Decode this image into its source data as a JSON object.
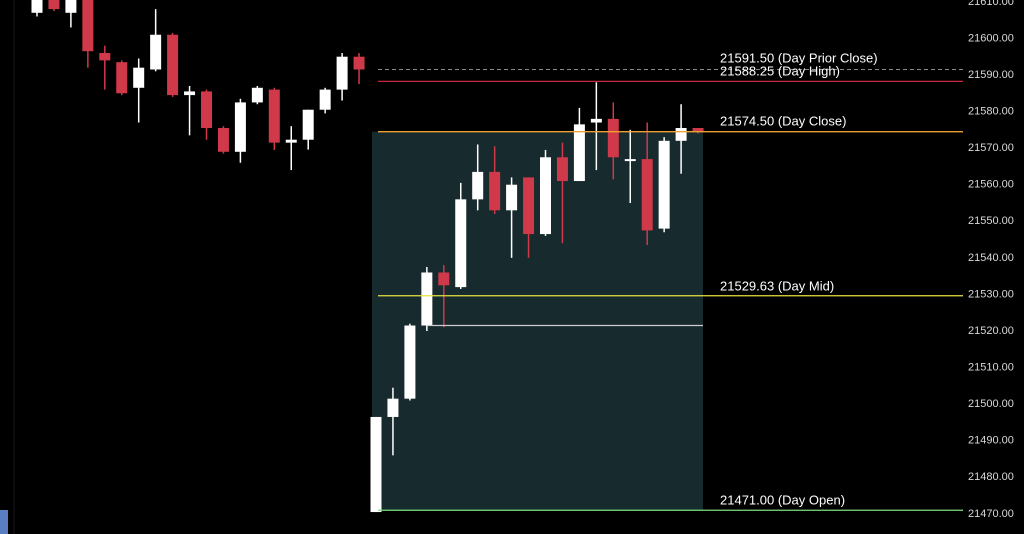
{
  "chart_data": {
    "type": "candlestick",
    "categories": [
      null,
      null,
      null,
      null,
      null,
      null,
      null,
      null,
      null,
      null,
      null,
      null,
      null,
      null,
      null,
      null,
      null,
      null,
      null,
      null,
      null,
      null,
      null,
      null,
      null,
      null,
      null,
      null,
      null,
      null,
      null,
      null,
      null,
      null,
      null,
      null,
      null,
      null,
      null,
      null
    ],
    "open": [
      21607,
      21612,
      21607,
      21612,
      21596,
      21593.5,
      21586.5,
      21591.5,
      21601,
      21584.5,
      21585.5,
      21575.5,
      21569,
      21582.5,
      21586,
      21571.5,
      21572.3,
      21580.5,
      21586,
      21595,
      21470.5,
      21496.5,
      21501.5,
      21521.5,
      21536,
      21532,
      21556,
      21563.5,
      21553,
      21562,
      21546.5,
      21567.5,
      21561,
      21577,
      21578,
      21566.5,
      21567,
      21548,
      21572,
      21575.5
    ],
    "high": [
      21614,
      21613,
      21613,
      21613,
      21598,
      21594,
      21594.5,
      21608,
      21601.5,
      21587,
      21586,
      21576,
      21583.5,
      21587,
      21586.5,
      21576,
      21580.5,
      21586.5,
      21596,
      21596,
      21496.5,
      21504.5,
      21522,
      21537.5,
      21538,
      21560.5,
      21571,
      21570.5,
      21562,
      21562,
      21569.5,
      21571.5,
      21581,
      21588,
      21582.5,
      21575,
      21577,
      21573,
      21582,
      21575.5
    ],
    "low": [
      21606,
      21607.5,
      21603,
      21592,
      21586,
      21584.5,
      21577,
      21591,
      21584,
      21573.5,
      21572.3,
      21568.5,
      21566,
      21582,
      21569.5,
      21564,
      21569.6,
      21579.5,
      21583,
      21587.5,
      21470.5,
      21486,
      21501,
      21520,
      21521,
      21531.5,
      21553,
      21552,
      21540,
      21540,
      21546,
      21544,
      21561,
      21564,
      21561.5,
      21555,
      21543.5,
      21547,
      21563,
      21574
    ],
    "close": [
      21612,
      21608,
      21612,
      21596.5,
      21594,
      21585,
      21592,
      21601,
      21584.5,
      21585.5,
      21575.5,
      21569,
      21582.5,
      21586.5,
      21571.5,
      21572.3,
      21580.5,
      21586,
      21595,
      21591.5,
      21496.5,
      21501.5,
      21521.5,
      21536,
      21532.5,
      21556,
      21563.5,
      21553,
      21560,
      21546.5,
      21567.5,
      21561,
      21576.5,
      21578,
      21567.5,
      21567,
      21547.5,
      21572,
      21575.5,
      21574.5
    ],
    "up_color": "#ffffff",
    "down_color": "#d0394a",
    "levels": [
      {
        "value": 21591.5,
        "label": "21591.50 (Day Prior Close)",
        "color": "#888888",
        "dashed": true
      },
      {
        "value": 21588.25,
        "label": "21588.25 (Day High)",
        "color": "#c8283c"
      },
      {
        "value": 21574.5,
        "label": "21574.50 (Day Close)",
        "color": "#f0a030"
      },
      {
        "value": 21529.63,
        "label": "21529.63 (Day Mid)",
        "color": "#e8e040"
      },
      {
        "value": 21521.5,
        "color": "#cccccc"
      },
      {
        "value": 21471,
        "label": "21471.00 (Day Open)",
        "color": "#7ee07e"
      }
    ],
    "range_fill": "#172a2e",
    "ylim": [
      21464.5,
      21610.5
    ],
    "yticks": [
      {
        "value": 21470,
        "label": "21470.00"
      },
      {
        "value": 21480,
        "label": "21480.00"
      },
      {
        "value": 21490,
        "label": "21490.00"
      },
      {
        "value": 21500,
        "label": "21500.00"
      },
      {
        "value": 21510,
        "label": "21510.00"
      },
      {
        "value": 21520,
        "label": "21520.00"
      },
      {
        "value": 21530,
        "label": "21530.00"
      },
      {
        "value": 21540,
        "label": "21540.00"
      },
      {
        "value": 21550,
        "label": "21550.00"
      },
      {
        "value": 21560,
        "label": "21560.00"
      },
      {
        "value": 21570,
        "label": "21570.00"
      },
      {
        "value": 21580,
        "label": "21580.00"
      },
      {
        "value": 21590,
        "label": "21590.00"
      },
      {
        "value": 21600,
        "label": "21600.00"
      },
      {
        "value": 21610,
        "label": "21610.00"
      }
    ]
  }
}
